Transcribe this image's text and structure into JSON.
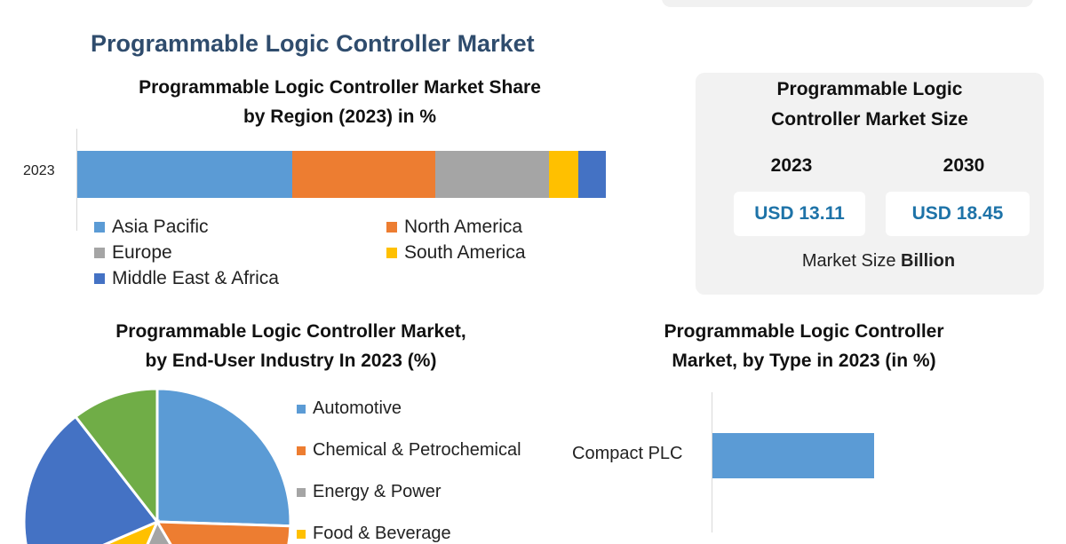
{
  "main_title": "Programmable Logic Controller Market",
  "colors": {
    "asia_pacific": "#5b9bd5",
    "north_america": "#ed7d31",
    "europe": "#a5a5a5",
    "south_america": "#ffc000",
    "middle_east_africa": "#4472c4",
    "automotive": "#5b9bd5",
    "chemical": "#ed7d31",
    "energy": "#a5a5a5",
    "food": "#ffc000",
    "fifth": "#4472c4",
    "sixth": "#70ad47",
    "title": "#2f4c6d",
    "value_text": "#1e73a8"
  },
  "market_size": {
    "title_line1": "Programmable Logic",
    "title_line2": "Controller Market Size",
    "year1": "2023",
    "year2": "2030",
    "value1": "USD 13.11",
    "value2": "USD 18.45",
    "unit_label": "Market Size",
    "unit_bold": "Billion"
  },
  "chart_data": [
    {
      "type": "bar",
      "orientation": "horizontal",
      "stacked": true,
      "title": "Programmable Logic Controller Market Share by Region (2023) in %",
      "title_line1": "Programmable Logic Controller Market Share",
      "title_line2": "by Region (2023) in %",
      "categories": [
        "2023"
      ],
      "xlim": [
        0,
        100
      ],
      "legend": "bottom",
      "grid": false,
      "series": [
        {
          "name": "Asia Pacific",
          "values": [
            40.7
          ],
          "color": "#5b9bd5"
        },
        {
          "name": "North America",
          "values": [
            27.1
          ],
          "color": "#ed7d31"
        },
        {
          "name": "Europe",
          "values": [
            21.5
          ],
          "color": "#a5a5a5"
        },
        {
          "name": "South America",
          "values": [
            5.5
          ],
          "color": "#ffc000"
        },
        {
          "name": "Middle East & Africa",
          "values": [
            5.2
          ],
          "color": "#4472c4"
        }
      ]
    },
    {
      "type": "pie",
      "title": "Programmable Logic Controller Market, by End-User Industry In 2023 (%)",
      "title_line1": "Programmable Logic Controller Market,",
      "title_line2": "by End-User Industry In 2023 (%)",
      "legend": "right",
      "labels": [
        "Automotive",
        "Chemical & Petrochemical",
        "Energy & Power",
        "Food & Beverage"
      ],
      "slices": [
        {
          "label": "Automotive",
          "value": 25.5,
          "color": "#5b9bd5"
        },
        {
          "label": "Chemical & Petrochemical",
          "value": 16,
          "color": "#ed7d31"
        },
        {
          "label": "Energy & Power",
          "value": 15,
          "color": "#a5a5a5"
        },
        {
          "label": "Food & Beverage",
          "value": 12,
          "color": "#ffc000"
        },
        {
          "label": "",
          "value": 21,
          "color": "#4472c4"
        },
        {
          "label": "",
          "value": 10.5,
          "color": "#70ad47"
        }
      ]
    },
    {
      "type": "bar",
      "orientation": "horizontal",
      "title": "Programmable Logic Controller Market, by Type in 2023 (in %)",
      "title_line1": "Programmable Logic Controller",
      "title_line2": "Market, by Type in 2023 (in %)",
      "categories": [
        "Compact PLC"
      ],
      "values": [
        50
      ],
      "grid": false
    }
  ]
}
